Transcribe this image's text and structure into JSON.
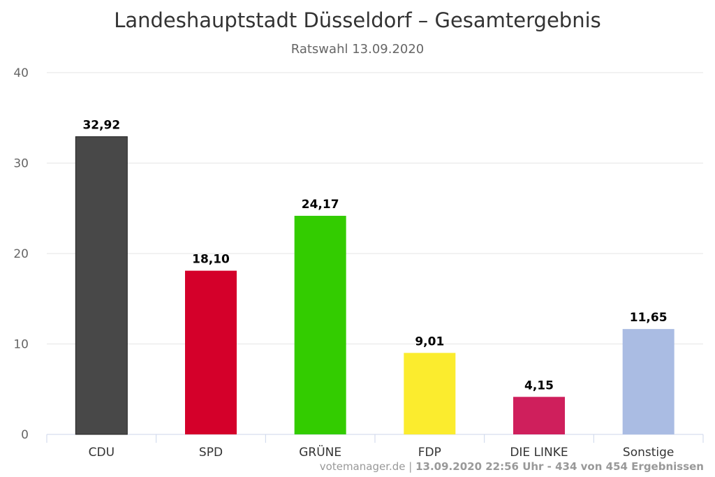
{
  "chart_data": {
    "type": "bar",
    "title": "Landeshauptstadt Düsseldorf – Gesamtergebnis",
    "subtitle": "Ratswahl 13.09.2020",
    "categories": [
      "CDU",
      "SPD",
      "GRÜNE",
      "FDP",
      "DIE LINKE",
      "Sonstige"
    ],
    "values": [
      32.92,
      18.1,
      24.17,
      9.01,
      4.15,
      11.65
    ],
    "value_labels": [
      "32,92",
      "18,10",
      "24,17",
      "9,01",
      "4,15",
      "11,65"
    ],
    "colors": [
      "#484848",
      "#d4002a",
      "#33cc00",
      "#fbec2e",
      "#cf1f5c",
      "#aabce3"
    ],
    "ylim": [
      0,
      40
    ],
    "yticks": [
      0,
      10,
      20,
      30,
      40
    ],
    "grid": true,
    "legend": "none",
    "xlabel": "",
    "ylabel": ""
  },
  "credit": {
    "source": "votemanager.de",
    "separator": " | ",
    "status": "13.09.2020 22:56 Uhr - 434 von 454 Ergebnissen"
  }
}
